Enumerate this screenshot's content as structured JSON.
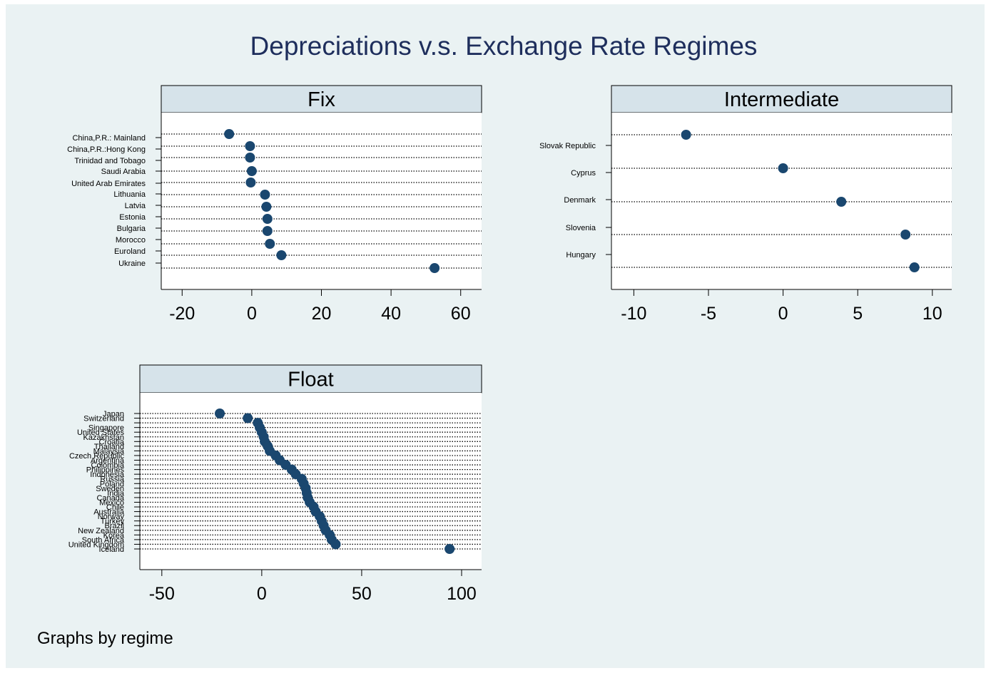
{
  "title": "Depreciations v.s. Exchange Rate Regimes",
  "note": "Graphs by regime",
  "colors": {
    "background": "#eaf2f3",
    "plot_background": "#ffffff",
    "strip": "#d6e3ea",
    "marker": "#1a476f",
    "title": "#1e2e5c",
    "text": "#000000"
  },
  "chart_data": [
    {
      "type": "scatter",
      "subtype": "dot",
      "panel": "Fix",
      "categories": [
        "China,P.R.: Mainland",
        "China,P.R.:Hong Kong",
        "Trinidad and Tobago",
        "Saudi Arabia",
        "United Arab Emirates",
        "Lithuania",
        "Latvia",
        "Estonia",
        "Bulgaria",
        "Morocco",
        "Euroland",
        "Ukraine"
      ],
      "values": [
        -6.5,
        -0.5,
        -0.5,
        0,
        -0.3,
        3.8,
        4.2,
        4.5,
        4.5,
        5.2,
        8.5,
        52.5
      ],
      "xticks": [
        "-20",
        "0",
        "20",
        "40",
        "60"
      ],
      "xlim": [
        -26,
        66
      ],
      "grid": true
    },
    {
      "type": "scatter",
      "subtype": "dot",
      "panel": "Intermediate",
      "categories": [
        "Slovak Republic",
        "Cyprus",
        "Denmark",
        "Slovenia",
        "Hungary"
      ],
      "values": [
        -6.5,
        0,
        3.9,
        8.2,
        8.8
      ],
      "xticks": [
        "-10",
        "-5",
        "0",
        "5",
        "10"
      ],
      "xlim": [
        -11.5,
        11.3
      ],
      "grid": true
    },
    {
      "type": "scatter",
      "subtype": "dot",
      "panel": "Float",
      "categories": [
        "Japan",
        "Switzerland",
        "",
        "Singapore",
        "United States",
        "Kazakhstan",
        "Croatia",
        "Thailand",
        "Malaysia",
        "Czech Republic",
        "Argentina",
        "Colombia",
        "Philippines",
        "Indonesia",
        "Russia",
        "Poland",
        "Sweden",
        "India",
        "Canada",
        "Mexico",
        "Chile",
        "Australia",
        "Norway",
        "Turkey",
        "Brazil",
        "New Zealand",
        "Korea",
        "South Africa",
        "United Kingdom",
        "Iceland"
      ],
      "values": [
        -21,
        -7,
        -2,
        -1,
        0,
        1,
        1.5,
        3,
        4,
        7,
        9,
        12,
        15,
        17,
        20,
        21,
        22,
        22.5,
        23,
        24,
        26,
        27,
        29,
        30,
        31,
        32,
        34,
        35,
        37,
        94
      ],
      "xticks": [
        "-50",
        "0",
        "50",
        "100"
      ],
      "xlim": [
        -61,
        110
      ],
      "grid": true
    }
  ]
}
